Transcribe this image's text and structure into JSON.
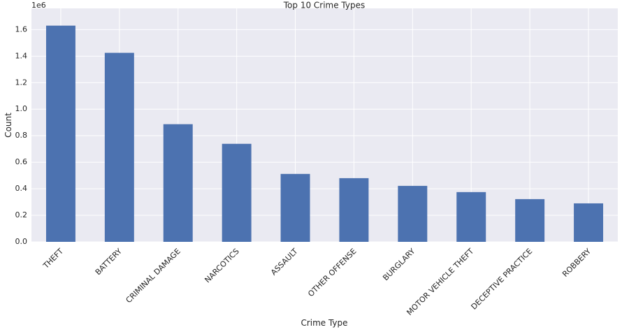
{
  "chart_data": {
    "type": "bar",
    "title": "Top 10 Crime Types",
    "x_label": "Crime Type",
    "y_label": "Count",
    "offset_label": "1e6",
    "categories": [
      "THEFT",
      "BATTERY",
      "CRIMINAL DAMAGE",
      "NARCOTICS",
      "ASSAULT",
      "OTHER OFFENSE",
      "BURGLARY",
      "MOTOR VEHICLE THEFT",
      "DECEPTIVE PRACTICE",
      "ROBBERY"
    ],
    "values": [
      1.63,
      1.425,
      0.887,
      0.739,
      0.512,
      0.48,
      0.422,
      0.375,
      0.322,
      0.29
    ],
    "color": "#4c72b0",
    "ylim": [
      0,
      1.76
    ],
    "yticks": [
      {
        "value": 0,
        "label": "0.0"
      },
      {
        "value": 0.2,
        "label": "0.2"
      },
      {
        "value": 0.4,
        "label": "0.4"
      },
      {
        "value": 0.6,
        "label": "0.6"
      },
      {
        "value": 0.8,
        "label": "0.8"
      },
      {
        "value": 1,
        "label": "1.0"
      },
      {
        "value": 1.2,
        "label": "1.2"
      },
      {
        "value": 1.4,
        "label": "1.4"
      },
      {
        "value": 1.6,
        "label": "1.6"
      }
    ],
    "grid": true
  }
}
